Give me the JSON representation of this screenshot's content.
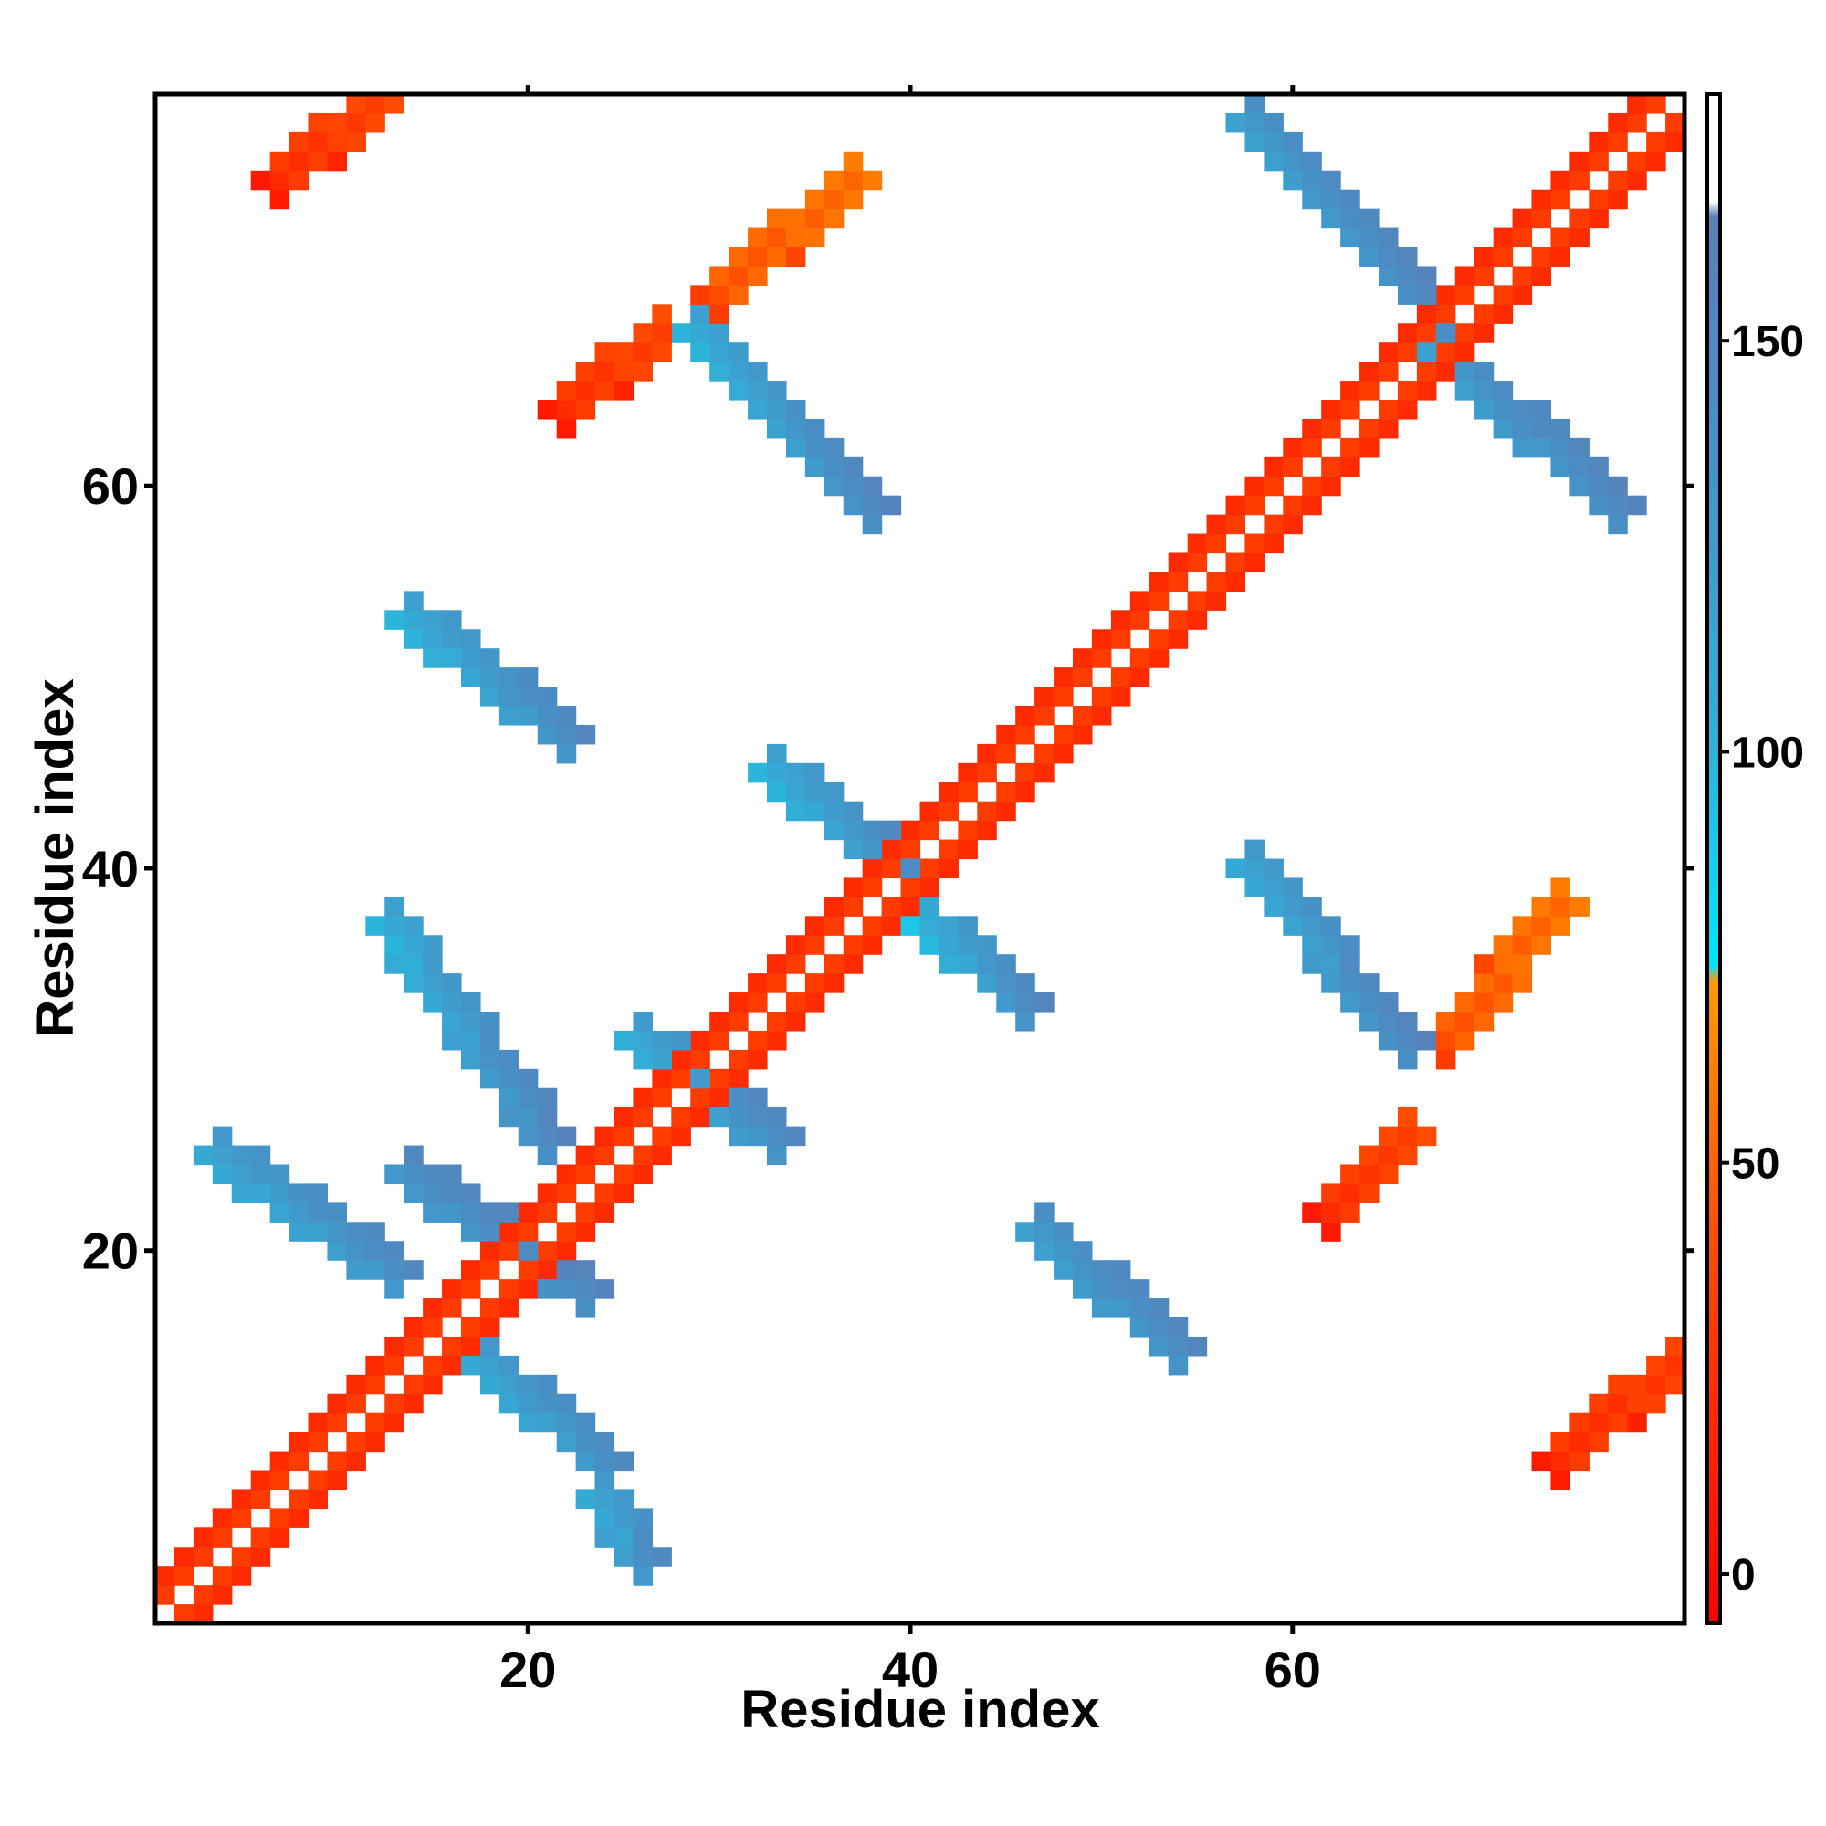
{
  "chart_data": {
    "type": "heatmap",
    "title": "",
    "xlabel": "Residue index",
    "ylabel": "Residue index",
    "xlim": [
      1,
      80
    ],
    "ylim": [
      1,
      80
    ],
    "x_ticks": [
      20,
      40,
      60
    ],
    "y_ticks": [
      20,
      40,
      60
    ],
    "colorbar": {
      "ticks": [
        0,
        50,
        100,
        150
      ],
      "range": [
        -6,
        180
      ],
      "colors": [
        "#ff0000",
        "#ff4d00",
        "#ff9900",
        "#00e5ff",
        "#30b0d8",
        "#4a8dc4",
        "#5a80b8",
        "#ffffff"
      ],
      "stops": [
        0,
        0.25,
        0.42,
        0.43,
        0.58,
        0.8,
        0.92,
        0.93
      ]
    },
    "grid": false,
    "segments": [
      {
        "name": "diagonal-band",
        "points": [
          [
            1,
            1
          ],
          [
            80,
            80
          ]
        ],
        "v0": 20,
        "v1": 20,
        "width": 4
      },
      {
        "name": "upper-left-blue-x1",
        "points": [
          [
            14,
            24
          ],
          [
            23,
            18
          ]
        ],
        "v0": 140,
        "v1": 150,
        "width": 2
      },
      {
        "name": "upper-left-blue-x2",
        "points": [
          [
            13,
            37
          ],
          [
            21,
            26
          ]
        ],
        "v0": 110,
        "v1": 150,
        "width": 2
      },
      {
        "name": "near-diag-blue-1",
        "points": [
          [
            4,
            25
          ],
          [
            13,
            19
          ]
        ],
        "v0": 120,
        "v1": 140,
        "width": 2
      },
      {
        "name": "near-diag-blue-2",
        "points": [
          [
            18,
            14
          ],
          [
            24,
            9
          ]
        ],
        "v0": 120,
        "v1": 140,
        "width": 2
      },
      {
        "name": "near-diag-blue-3",
        "points": [
          [
            26,
            31
          ],
          [
            33,
            26
          ]
        ],
        "v0": 115,
        "v1": 145,
        "width": 2
      },
      {
        "name": "near-diag-blue-4",
        "points": [
          [
            33,
            45
          ],
          [
            40,
            40
          ]
        ],
        "v0": 110,
        "v1": 145,
        "width": 2
      },
      {
        "name": "near-diag-blue-5",
        "points": [
          [
            40,
            38
          ],
          [
            46,
            33
          ]
        ],
        "v0": 100,
        "v1": 145,
        "width": 2
      },
      {
        "name": "mid-blue-1",
        "points": [
          [
            47,
            21
          ],
          [
            54,
            15
          ]
        ],
        "v0": 130,
        "v1": 145,
        "width": 2
      },
      {
        "name": "mid-blue-2",
        "points": [
          [
            14,
            53
          ],
          [
            22,
            47
          ]
        ],
        "v0": 110,
        "v1": 145,
        "width": 2
      },
      {
        "name": "top-blue-1",
        "points": [
          [
            29,
            68
          ],
          [
            38,
            59
          ]
        ],
        "v0": 110,
        "v1": 150,
        "width": 2
      },
      {
        "name": "top-blue-2",
        "points": [
          [
            58,
            79
          ],
          [
            67,
            70
          ]
        ],
        "v0": 130,
        "v1": 150,
        "width": 2
      },
      {
        "name": "top-blue-3",
        "points": [
          [
            68,
            67
          ],
          [
            77,
            59
          ]
        ],
        "v0": 130,
        "v1": 150,
        "width": 2
      },
      {
        "name": "right-blue-1",
        "points": [
          [
            58,
            40
          ],
          [
            66,
            31
          ]
        ],
        "v0": 120,
        "v1": 150,
        "width": 2
      },
      {
        "name": "right-blue-2",
        "points": [
          [
            24,
            7
          ],
          [
            26,
            4
          ]
        ],
        "v0": 120,
        "v1": 140,
        "width": 2
      },
      {
        "name": "orange-top-1",
        "points": [
          [
            7,
            76
          ],
          [
            12,
            80
          ]
        ],
        "v0": 20,
        "v1": 30,
        "width": 2
      },
      {
        "name": "orange-top-2",
        "points": [
          [
            22,
            64
          ],
          [
            27,
            68
          ]
        ],
        "v0": 20,
        "v1": 30,
        "width": 2
      },
      {
        "name": "orange-top-3",
        "points": [
          [
            30,
            70
          ],
          [
            37,
            76
          ]
        ],
        "v0": 40,
        "v1": 50,
        "width": 2
      },
      {
        "name": "orange-right-1",
        "points": [
          [
            62,
            22
          ],
          [
            66,
            26
          ]
        ],
        "v0": 20,
        "v1": 30,
        "width": 2
      },
      {
        "name": "orange-right-2",
        "points": [
          [
            68,
            31
          ],
          [
            74,
            38
          ]
        ],
        "v0": 40,
        "v1": 50,
        "width": 2
      },
      {
        "name": "corner-red",
        "points": [
          [
            74,
            9
          ],
          [
            80,
            14
          ]
        ],
        "v0": 20,
        "v1": 25,
        "width": 3
      }
    ]
  }
}
